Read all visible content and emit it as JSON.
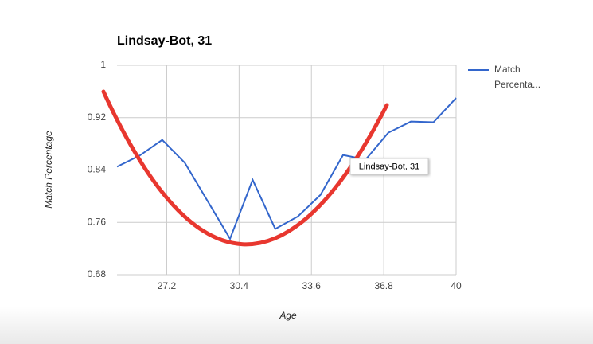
{
  "chart_data": {
    "type": "line",
    "title": "Lindsay-Bot, 31",
    "x_label": "Age",
    "y_label": "Match Percentage",
    "x": [
      25,
      26,
      27,
      28,
      29,
      30,
      31,
      32,
      33,
      34,
      35,
      36,
      37,
      38,
      39,
      40
    ],
    "series": [
      {
        "name": "Match Percenta...",
        "color": "#3366cc",
        "values": [
          0.845,
          0.862,
          0.886,
          0.851,
          0.793,
          0.735,
          0.825,
          0.75,
          0.769,
          0.802,
          0.863,
          0.856,
          0.897,
          0.914,
          0.913,
          0.95
        ]
      }
    ],
    "xlim": [
      25,
      40
    ],
    "xticks": [
      27.2,
      30.4,
      33.6,
      36.8,
      40
    ],
    "ylim": [
      0.68,
      1
    ],
    "yticks": [
      0.68,
      0.76,
      0.84,
      0.92,
      1
    ],
    "grid": true,
    "legend": "right",
    "tooltip": "Lindsay-Bot, 31"
  }
}
